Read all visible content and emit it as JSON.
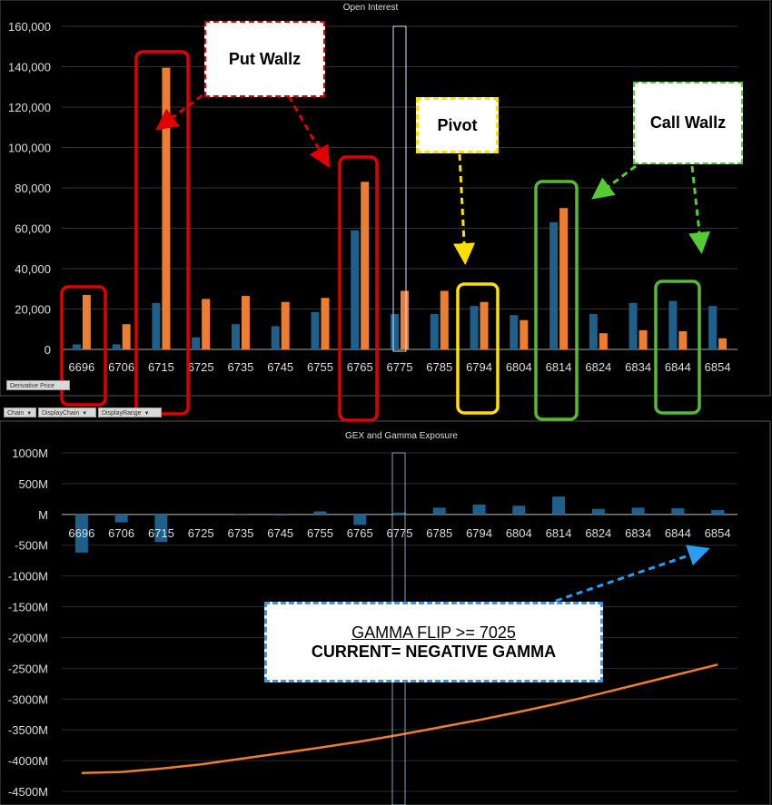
{
  "colors": {
    "series_blue": "#1f5f8b",
    "series_orange": "#ed7d31",
    "box_red": "#e00000",
    "box_yellow": "#ffe000",
    "box_green": "#55bb33",
    "callout_blue": "#2a9df4"
  },
  "chart_data": [
    {
      "type": "bar",
      "title": "Open Interest",
      "categories": [
        "6696",
        "6706",
        "6715",
        "6725",
        "6735",
        "6745",
        "6755",
        "6765",
        "6775",
        "6785",
        "6794",
        "6804",
        "6814",
        "6824",
        "6834",
        "6844",
        "6854"
      ],
      "series": [
        {
          "values": [
            2500,
            2500,
            23000,
            6000,
            12500,
            11500,
            18500,
            59000,
            17500,
            17500,
            21500,
            17000,
            63000,
            17500,
            23000,
            24000,
            21500
          ]
        },
        {
          "values": [
            27000,
            12500,
            139500,
            25000,
            26500,
            23500,
            25500,
            83000,
            29000,
            29000,
            23500,
            14500,
            70000,
            8000,
            9500,
            9000,
            5500
          ]
        }
      ],
      "ylim": [
        0,
        160000
      ],
      "yticks": [
        "0",
        "20,000",
        "40,000",
        "60,000",
        "80,000",
        "100,000",
        "120,000",
        "140,000",
        "160,000"
      ],
      "ytick_values": [
        0,
        20000,
        40000,
        60000,
        80000,
        100000,
        120000,
        140000,
        160000
      ]
    },
    {
      "type": "bar",
      "title": "GEX and Gamma Exposure",
      "categories": [
        "6696",
        "6706",
        "6715",
        "6725",
        "6735",
        "6745",
        "6755",
        "6765",
        "6775",
        "6785",
        "6794",
        "6804",
        "6814",
        "6824",
        "6834",
        "6844",
        "6854"
      ],
      "series": [
        {
          "values": [
            -620,
            -130,
            -450,
            0,
            -15,
            -20,
            50,
            -170,
            30,
            110,
            160,
            140,
            290,
            90,
            110,
            100,
            70
          ]
        }
      ],
      "line": {
        "values": [
          -4200,
          -4185,
          -4130,
          -4060,
          -3970,
          -3880,
          -3790,
          -3690,
          -3580,
          -3460,
          -3340,
          -3210,
          -3070,
          -2920,
          -2760,
          -2600,
          -2440
        ]
      },
      "ylim": [
        -4500,
        1000
      ],
      "yticks": [
        "-4500M",
        "-4000M",
        "-3500M",
        "-3000M",
        "-2500M",
        "-2000M",
        "-1500M",
        "-1000M",
        "-500M",
        "M",
        "500M",
        "1000M"
      ],
      "ytick_values": [
        -4500,
        -4000,
        -3500,
        -3000,
        -2500,
        -2000,
        -1500,
        -1000,
        -500,
        0,
        500,
        1000
      ]
    }
  ],
  "buttons": {
    "derivative_price": "Derivative Price",
    "chain": "Chain",
    "display_chain": "DisplayChain",
    "display_range": "DisplayRange"
  },
  "callouts": {
    "put_walls": "Put Wallz",
    "pivot": "Pivot",
    "call_walls": "Call Wallz",
    "gamma_flip": "GAMMA FLIP >= 7025",
    "current": "CURRENT= NEGATIVE GAMMA"
  }
}
